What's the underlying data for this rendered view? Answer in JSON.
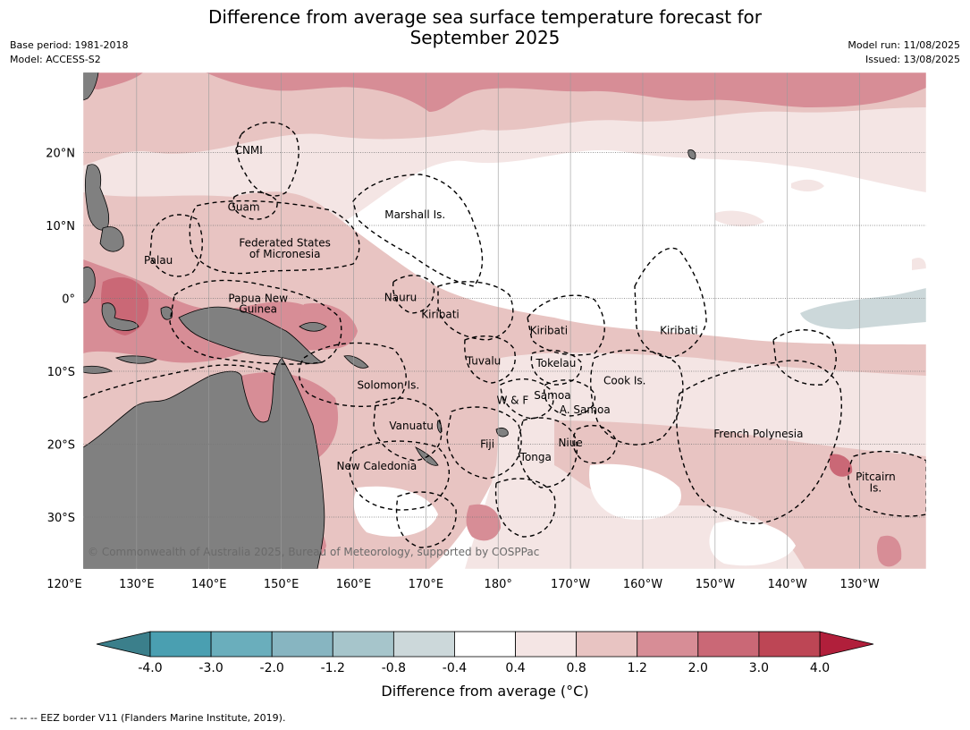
{
  "title_line1": "Difference from average sea surface temperature forecast for",
  "title_line2": "September 2025",
  "meta_left": [
    "Base period: 1981-2018",
    "Model: ACCESS-S2"
  ],
  "meta_right": [
    "Model run: 11/08/2025",
    "Issued: 13/08/2025"
  ],
  "lat_ticks": [
    {
      "label": "20°N",
      "lat": 20
    },
    {
      "label": "10°N",
      "lat": 10
    },
    {
      "label": "0°",
      "lat": 0
    },
    {
      "label": "10°S",
      "lat": -10
    },
    {
      "label": "20°S",
      "lat": -20
    },
    {
      "label": "30°S",
      "lat": -30
    }
  ],
  "lon_ticks": [
    {
      "label": "120°E",
      "lon": 120
    },
    {
      "label": "130°E",
      "lon": 130
    },
    {
      "label": "140°E",
      "lon": 140
    },
    {
      "label": "150°E",
      "lon": 150
    },
    {
      "label": "160°E",
      "lon": 160
    },
    {
      "label": "170°E",
      "lon": 170
    },
    {
      "label": "180°",
      "lon": 180
    },
    {
      "label": "170°W",
      "lon": 190
    },
    {
      "label": "160°W",
      "lon": 200
    },
    {
      "label": "150°W",
      "lon": 210
    },
    {
      "label": "140°W",
      "lon": 220
    },
    {
      "label": "130°W",
      "lon": 230
    }
  ],
  "region_labels": [
    {
      "text": "CNMI",
      "lon": 145.5,
      "lat": 20.3
    },
    {
      "text": "Guam",
      "lon": 144.8,
      "lat": 12.5
    },
    {
      "text": "Marshall Is.",
      "lon": 168.5,
      "lat": 11.5
    },
    {
      "text": "Federated States",
      "lon": 150.5,
      "lat": 7.6
    },
    {
      "text": "of Micronesia",
      "lon": 150.5,
      "lat": 6.1
    },
    {
      "text": "Palau",
      "lon": 133,
      "lat": 5.2
    },
    {
      "text": "Nauru",
      "lon": 166.5,
      "lat": 0.1
    },
    {
      "text": "Papua New",
      "lon": 146.8,
      "lat": 0
    },
    {
      "text": "Guinea",
      "lon": 146.8,
      "lat": -1.5
    },
    {
      "text": "Kiribati",
      "lon": 172,
      "lat": -2.2
    },
    {
      "text": "Kiribati",
      "lon": 187,
      "lat": -4.4
    },
    {
      "text": "Kiribati",
      "lon": 205,
      "lat": -4.4
    },
    {
      "text": "Tuvalu",
      "lon": 178,
      "lat": -8.6
    },
    {
      "text": "Tokelau",
      "lon": 188,
      "lat": -8.9
    },
    {
      "text": "Cook Is.",
      "lon": 197.5,
      "lat": -11.3
    },
    {
      "text": "Solomon Is.",
      "lon": 164.8,
      "lat": -11.9
    },
    {
      "text": "Samoa",
      "lon": 187.5,
      "lat": -13.3
    },
    {
      "text": "W & F",
      "lon": 182,
      "lat": -14
    },
    {
      "text": "A. Samoa",
      "lon": 192,
      "lat": -15.3
    },
    {
      "text": "Vanuatu",
      "lon": 168,
      "lat": -17.5
    },
    {
      "text": "Fiji",
      "lon": 178.5,
      "lat": -20
    },
    {
      "text": "Niue",
      "lon": 190,
      "lat": -19.8
    },
    {
      "text": "French Polynesia",
      "lon": 216,
      "lat": -18.6
    },
    {
      "text": "Tonga",
      "lon": 185.2,
      "lat": -21.8
    },
    {
      "text": "New Caledonia",
      "lon": 163.2,
      "lat": -23
    },
    {
      "text": "Pitcairn",
      "lon": 232.2,
      "lat": -24.5
    },
    {
      "text": "Is.",
      "lon": 232.2,
      "lat": -26
    }
  ],
  "copyright": "© Commonwealth of Australia 2025, Bureau of Meteorology, supported by COSPPac",
  "colorbar": {
    "boundaries": [
      "-4.0",
      "-3.0",
      "-2.0",
      "-1.2",
      "-0.8",
      "-0.4",
      "0.4",
      "0.8",
      "1.2",
      "2.0",
      "3.0",
      "4.0"
    ],
    "colors": [
      "#4a9fb1",
      "#6aaebc",
      "#87b5c1",
      "#a6c5cb",
      "#ccd8da",
      "#ffffff",
      "#f4e5e4",
      "#e8c4c2",
      "#d78d96",
      "#ca6876",
      "#bd4655"
    ],
    "low_extend_color": "#3b7f8b",
    "high_extend_color": "#b11f3b",
    "label": "Difference from average (°C)"
  },
  "land_color": "#808080",
  "footer": "--  --  -- EEZ border V11 (Flanders Marine Institute, 2019)."
}
